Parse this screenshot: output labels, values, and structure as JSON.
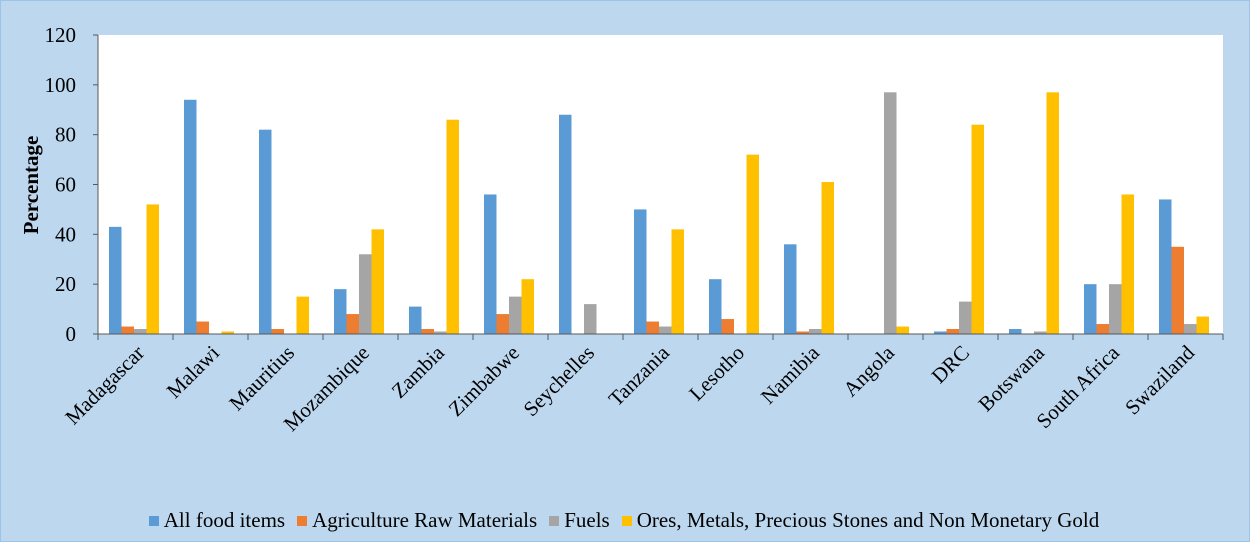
{
  "chart_data": {
    "type": "bar",
    "title": "",
    "xlabel": "",
    "ylabel": "Percentage",
    "ylim": [
      0,
      120
    ],
    "yticks": [
      0,
      20,
      40,
      60,
      80,
      100,
      120
    ],
    "grid": false,
    "legend_position": "bottom",
    "categories": [
      "Madagascar",
      "Malawi",
      "Mauritius",
      "Mozambique",
      "Zambia",
      "Zimbabwe",
      "Seychelles",
      "Tanzania",
      "Lesotho",
      "Namibia",
      "Angola",
      "DRC",
      "Botswana",
      "South Africa",
      "Swaziland"
    ],
    "series": [
      {
        "name": "All food items",
        "color": "#5b9bd5",
        "values": [
          43,
          94,
          82,
          18,
          11,
          56,
          88,
          50,
          22,
          36,
          0,
          1,
          2,
          20,
          54
        ]
      },
      {
        "name": "Agriculture Raw Materials",
        "color": "#ed7d31",
        "values": [
          3,
          5,
          2,
          8,
          2,
          8,
          0,
          5,
          6,
          1,
          0,
          2,
          0,
          4,
          35
        ]
      },
      {
        "name": "Fuels",
        "color": "#a5a5a5",
        "values": [
          2,
          0,
          0,
          32,
          1,
          15,
          12,
          3,
          0,
          2,
          97,
          13,
          1,
          20,
          4
        ]
      },
      {
        "name": "Ores, Metals, Precious Stones and Non Monetary Gold",
        "color": "#ffc000",
        "values": [
          52,
          1,
          15,
          42,
          86,
          22,
          0,
          42,
          72,
          61,
          3,
          84,
          97,
          56,
          7
        ]
      }
    ]
  }
}
